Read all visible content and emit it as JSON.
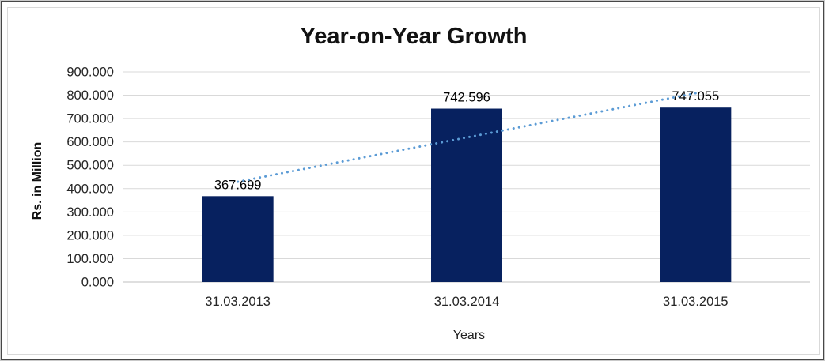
{
  "chart": {
    "title": "Year-on-Year Growth",
    "y_axis_title": "Rs. in Million",
    "x_axis_title": "Years"
  },
  "chart_data": {
    "type": "bar",
    "title": "Year-on-Year Growth",
    "xlabel": "Years",
    "ylabel": "Rs. in Million",
    "categories": [
      "31.03.2013",
      "31.03.2014",
      "31.03.2015"
    ],
    "values": [
      367.699,
      742.596,
      747.055
    ],
    "data_labels": [
      "367.699",
      "742.596",
      "747.055"
    ],
    "ylim": [
      0,
      900
    ],
    "ytick_step": 100,
    "ytick_labels": [
      "0.000",
      "100.000",
      "200.000",
      "300.000",
      "400.000",
      "500.000",
      "600.000",
      "700.000",
      "800.000",
      "900.000"
    ],
    "grid": true,
    "legend_position": "none",
    "bar_color": "#07215F",
    "gridline_color": "#d9d9d9",
    "axis_line_color": "#bfbfbf",
    "label_color": "#262626",
    "trendline": {
      "type": "linear",
      "style": "dotted",
      "color": "#5B9BD5",
      "endpoint_values": [
        429.5,
        808.5
      ]
    }
  }
}
